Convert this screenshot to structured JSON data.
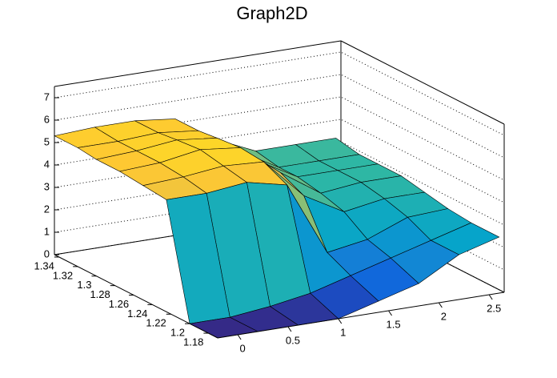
{
  "chart_data": {
    "type": "surface",
    "title": "Graph2D",
    "x": [
      -0.2,
      0.2,
      0.6,
      1.0,
      1.4,
      1.8,
      2.2,
      2.6
    ],
    "y": [
      1.17,
      1.2,
      1.225,
      1.25,
      1.275,
      1.3,
      1.32,
      1.345
    ],
    "z": [
      [
        0,
        0,
        0,
        0,
        0.5,
        1,
        2,
        2.5
      ],
      [
        0,
        0,
        0.2,
        0.5,
        1,
        1.5,
        2,
        2.5
      ],
      [
        5,
        5,
        5.2,
        4.8,
        1.5,
        1.8,
        2.5,
        2.6
      ],
      [
        5.1,
        5.2,
        5.4,
        5.3,
        3.5,
        2.5,
        2.8,
        2.8
      ],
      [
        5.2,
        5.3,
        5.6,
        5.4,
        4,
        2.8,
        3,
        3
      ],
      [
        5.2,
        5.3,
        5.5,
        5.3,
        4,
        3,
        3,
        3
      ],
      [
        5.3,
        5.3,
        5.4,
        5.2,
        4,
        3,
        3,
        3
      ],
      [
        5.3,
        5.4,
        5.4,
        5.2,
        4,
        3.2,
        3.2,
        3.2
      ]
    ],
    "xlim": [
      -0.2,
      2.65
    ],
    "ylim": [
      1.17,
      1.345
    ],
    "zlim": [
      0,
      7.5
    ],
    "xticks": [
      0,
      0.5,
      1,
      1.5,
      2,
      2.5
    ],
    "yticks": [
      1.18,
      1.2,
      1.22,
      1.24,
      1.26,
      1.28,
      1.3,
      1.32,
      1.34
    ],
    "zticks": [
      0,
      1,
      2,
      3,
      4,
      5,
      6,
      7
    ],
    "grid": true,
    "palette": [
      "#352a87",
      "#0f5cdd",
      "#1481d6",
      "#06a4ca",
      "#2eb7a4",
      "#87bf77",
      "#d1bb59",
      "#fec832",
      "#f9fb0e"
    ]
  }
}
